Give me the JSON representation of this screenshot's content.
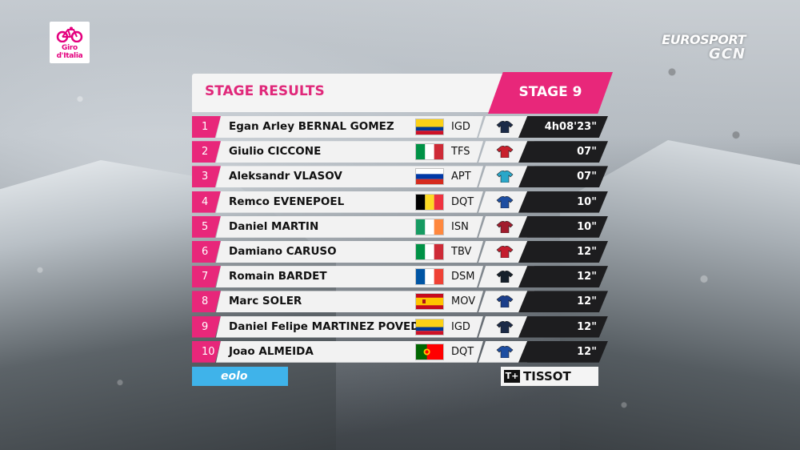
{
  "logo": {
    "text": "Giro d'Italia"
  },
  "broadcaster": {
    "line1": "EUROSPORT",
    "line2": "GCN"
  },
  "header": {
    "title": "STAGE RESULTS",
    "stage": "STAGE 9"
  },
  "colors": {
    "accent": "#e8277a",
    "time_bg": "#1d1d1f",
    "row_bg": "#f2f2f2"
  },
  "results": [
    {
      "rank": "1",
      "name": "Egan Arley BERNAL GOMEZ",
      "team": "IGD",
      "time": "4h08'23\"",
      "flag": "colombia",
      "jersey": "#1b2a47"
    },
    {
      "rank": "2",
      "name": "Giulio CICCONE",
      "team": "TFS",
      "time": "07\"",
      "flag": "italy",
      "jersey": "#c8202d"
    },
    {
      "rank": "3",
      "name": "Aleksandr VLASOV",
      "team": "APT",
      "time": "07\"",
      "flag": "russia",
      "jersey": "#2aa7c9"
    },
    {
      "rank": "4",
      "name": "Remco EVENEPOEL",
      "team": "DQT",
      "time": "10\"",
      "flag": "belgium",
      "jersey": "#1e4ea1"
    },
    {
      "rank": "5",
      "name": "Daniel MARTIN",
      "team": "ISN",
      "time": "10\"",
      "flag": "ireland",
      "jersey": "#a11c2d"
    },
    {
      "rank": "6",
      "name": "Damiano CARUSO",
      "team": "TBV",
      "time": "12\"",
      "flag": "italy",
      "jersey": "#c41d2e"
    },
    {
      "rank": "7",
      "name": "Romain BARDET",
      "team": "DSM",
      "time": "12\"",
      "flag": "france",
      "jersey": "#16202b"
    },
    {
      "rank": "8",
      "name": "Marc SOLER",
      "team": "MOV",
      "time": "12\"",
      "flag": "spain",
      "jersey": "#1c3f8a"
    },
    {
      "rank": "9",
      "name": "Daniel Felipe MARTINEZ POVEDA",
      "team": "IGD",
      "time": "12\"",
      "flag": "colombia",
      "jersey": "#1b2a47"
    },
    {
      "rank": "10",
      "name": "Joao ALMEIDA",
      "team": "DQT",
      "time": "12\"",
      "flag": "portugal",
      "jersey": "#1e4ea1"
    }
  ],
  "sponsors": {
    "left": "eolo",
    "right": "TISSOT",
    "right_mark": "T+"
  }
}
